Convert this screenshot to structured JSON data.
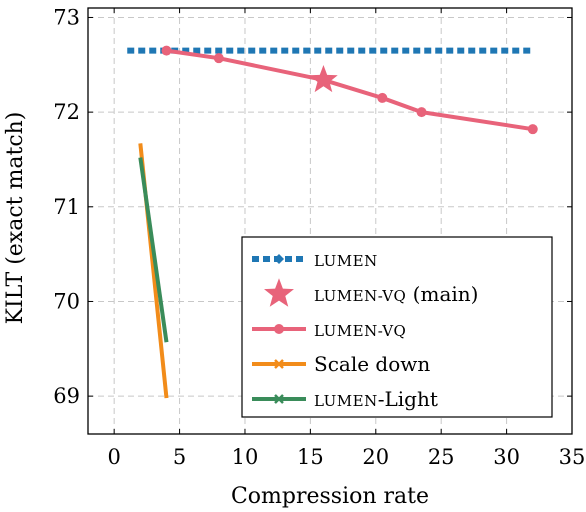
{
  "chart_data": {
    "type": "line",
    "xlabel": "Compression rate",
    "ylabel": "KILT (exact match)",
    "xlim": [
      -2,
      35
    ],
    "ylim": [
      68.6,
      73.1
    ],
    "xticks": [
      0,
      5,
      10,
      15,
      20,
      25,
      30,
      35
    ],
    "yticks": [
      69,
      70,
      71,
      72,
      73
    ],
    "grid": true,
    "legend_position": "bottom-right",
    "series": [
      {
        "name_sc": "LUMEN",
        "name_rest": "",
        "color": "#1f77b4",
        "style": "dotted",
        "marker": "diamond",
        "points": [
          [
            1,
            72.65
          ],
          [
            32,
            72.65
          ]
        ]
      },
      {
        "name_sc": "LUMEN-VQ",
        "name_rest": " (main)",
        "color": "#e8637a",
        "style": "star",
        "marker": "star",
        "points": [
          [
            16,
            72.34
          ]
        ]
      },
      {
        "name_sc": "LUMEN-VQ",
        "name_rest": "",
        "color": "#e8637a",
        "style": "solid",
        "marker": "circle",
        "points": [
          [
            4,
            72.65
          ],
          [
            8,
            72.57
          ],
          [
            16,
            72.34
          ],
          [
            20.5,
            72.15
          ],
          [
            23.5,
            72.0
          ],
          [
            32,
            71.82
          ]
        ]
      },
      {
        "name_sc": "",
        "name_rest": "Scale down",
        "color": "#f28c1a",
        "style": "solid",
        "marker": "cross",
        "points": [
          [
            2,
            71.67
          ],
          [
            4,
            68.98
          ]
        ]
      },
      {
        "name_sc": "LUMEN",
        "name_rest": "-Light",
        "color": "#3a8c5a",
        "style": "solid",
        "marker": "cross",
        "points": [
          [
            2,
            71.52
          ],
          [
            4,
            69.57
          ]
        ]
      }
    ]
  }
}
